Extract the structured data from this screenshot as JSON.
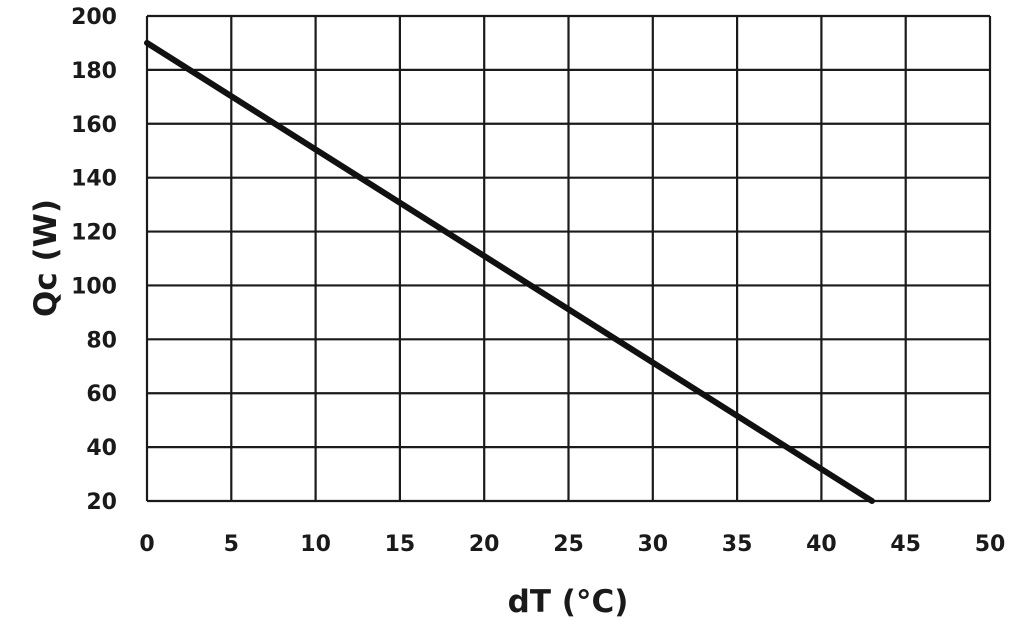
{
  "chart_data": {
    "type": "line",
    "title": "",
    "xlabel": "dT (°C)",
    "ylabel": "Qc (W)",
    "xlim": [
      0,
      50
    ],
    "ylim": [
      20,
      200
    ],
    "x_ticks": [
      "0",
      "5",
      "10",
      "15",
      "20",
      "25",
      "30",
      "35",
      "40",
      "45",
      "50"
    ],
    "y_ticks": [
      "20",
      "40",
      "60",
      "80",
      "100",
      "120",
      "140",
      "160",
      "180",
      "200"
    ],
    "grid": true,
    "legend": "none",
    "series": [
      {
        "x": [
          0,
          43
        ],
        "y": [
          190,
          20
        ],
        "color": "#111111"
      }
    ]
  }
}
